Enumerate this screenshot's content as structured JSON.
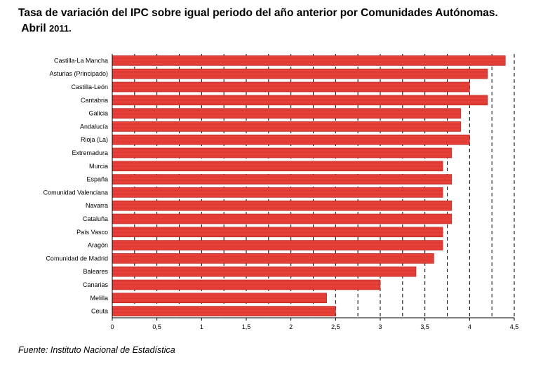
{
  "header": {
    "title_line1": "Tasa de variación del IPC sobre igual periodo del año anterior por Comunidades Autónomas.",
    "title_line2_prefix": "Abril",
    "title_line2_year": "2011."
  },
  "footer": {
    "source": "Fuente: Instituto Nacional de Estadística"
  },
  "colors": {
    "bar": "#e8413a",
    "bar_border": "#b01e1a",
    "grid": "#000000"
  },
  "chart_data": {
    "type": "bar",
    "orientation": "horizontal",
    "title": "Tasa de variación del IPC sobre igual periodo del año anterior por Comunidades Autónomas. Abril 2011.",
    "xlabel": "",
    "ylabel": "",
    "xlim": [
      0,
      4.5
    ],
    "grid": "vertical dashed",
    "categories": [
      "Castilla-La Mancha",
      "Asturias (Principado)",
      "Castilla-León",
      "Cantabria",
      "Galicia",
      "Andalucía",
      "Rioja (La)",
      "Extremadura",
      "Murcia",
      "España",
      "Comunidad Valenciana",
      "Navarra",
      "Cataluña",
      "País Vasco",
      "Aragón",
      "Comunidad de Madrid",
      "Baleares",
      "Canarias",
      "Melilla",
      "Ceuta"
    ],
    "values": [
      4.4,
      4.2,
      4.0,
      4.2,
      3.9,
      3.9,
      4.0,
      3.8,
      3.7,
      3.8,
      3.7,
      3.8,
      3.8,
      3.7,
      3.7,
      3.6,
      3.4,
      3.0,
      2.4,
      2.5
    ],
    "tick_labels": [
      "0",
      "0,5",
      "1",
      "1,5",
      "2",
      "2,5",
      "3",
      "3,5",
      "4",
      "4,5"
    ]
  }
}
